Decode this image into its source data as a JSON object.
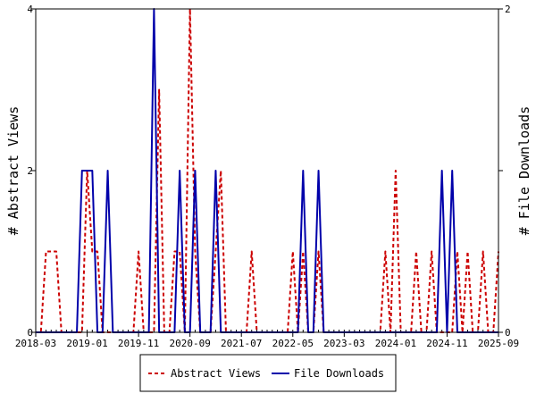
{
  "chart_data": {
    "type": "line",
    "x_ticks": [
      "2018-03",
      "2019-01",
      "2019-11",
      "2020-09",
      "2021-07",
      "2022-05",
      "2023-03",
      "2024-01",
      "2024-11",
      "2025-09"
    ],
    "x_start": "2018-03",
    "x_end": "2025-09",
    "left_axis": {
      "label": "# Abstract Views",
      "ylim": [
        0,
        4
      ],
      "ticks": [
        "0",
        "2",
        "4"
      ]
    },
    "right_axis": {
      "label": "# File Downloads",
      "ylim": [
        0,
        2
      ],
      "ticks": [
        "0",
        "1",
        "2"
      ]
    },
    "legend_position": "bottom",
    "series": [
      {
        "name": "Abstract Views",
        "axis": "left",
        "color": "#cc0000",
        "dash": "dashed",
        "points": [
          [
            "2018-03",
            0
          ],
          [
            "2018-04",
            0
          ],
          [
            "2018-05",
            1
          ],
          [
            "2018-06",
            1
          ],
          [
            "2018-07",
            1
          ],
          [
            "2018-08",
            0
          ],
          [
            "2018-09",
            0
          ],
          [
            "2018-10",
            0
          ],
          [
            "2018-11",
            0
          ],
          [
            "2018-12",
            0
          ],
          [
            "2019-01",
            2
          ],
          [
            "2019-02",
            1
          ],
          [
            "2019-03",
            1
          ],
          [
            "2019-04",
            0
          ],
          [
            "2019-05",
            0
          ],
          [
            "2019-06",
            0
          ],
          [
            "2019-07",
            0
          ],
          [
            "2019-08",
            0
          ],
          [
            "2019-09",
            0
          ],
          [
            "2019-10",
            0
          ],
          [
            "2019-11",
            1
          ],
          [
            "2019-12",
            0
          ],
          [
            "2020-01",
            0
          ],
          [
            "2020-02",
            0
          ],
          [
            "2020-03",
            3
          ],
          [
            "2020-04",
            0
          ],
          [
            "2020-05",
            0
          ],
          [
            "2020-06",
            1
          ],
          [
            "2020-07",
            1
          ],
          [
            "2020-08",
            0
          ],
          [
            "2020-09",
            4
          ],
          [
            "2020-10",
            1
          ],
          [
            "2020-11",
            0
          ],
          [
            "2020-12",
            0
          ],
          [
            "2021-01",
            0
          ],
          [
            "2021-02",
            1
          ],
          [
            "2021-03",
            2
          ],
          [
            "2021-04",
            0
          ],
          [
            "2021-05",
            0
          ],
          [
            "2021-06",
            0
          ],
          [
            "2021-07",
            0
          ],
          [
            "2021-08",
            0
          ],
          [
            "2021-09",
            1
          ],
          [
            "2021-10",
            0
          ],
          [
            "2021-11",
            0
          ],
          [
            "2021-12",
            0
          ],
          [
            "2022-01",
            0
          ],
          [
            "2022-02",
            0
          ],
          [
            "2022-03",
            0
          ],
          [
            "2022-04",
            0
          ],
          [
            "2022-05",
            1
          ],
          [
            "2022-06",
            0
          ],
          [
            "2022-07",
            1
          ],
          [
            "2022-08",
            0
          ],
          [
            "2022-09",
            0
          ],
          [
            "2022-10",
            1
          ],
          [
            "2022-11",
            0
          ],
          [
            "2022-12",
            0
          ],
          [
            "2023-01",
            0
          ],
          [
            "2023-02",
            0
          ],
          [
            "2023-03",
            0
          ],
          [
            "2023-04",
            0
          ],
          [
            "2023-05",
            0
          ],
          [
            "2023-06",
            0
          ],
          [
            "2023-07",
            0
          ],
          [
            "2023-08",
            0
          ],
          [
            "2023-09",
            0
          ],
          [
            "2023-10",
            0
          ],
          [
            "2023-11",
            1
          ],
          [
            "2023-12",
            0
          ],
          [
            "2024-01",
            2
          ],
          [
            "2024-02",
            0
          ],
          [
            "2024-03",
            0
          ],
          [
            "2024-04",
            0
          ],
          [
            "2024-05",
            1
          ],
          [
            "2024-06",
            0
          ],
          [
            "2024-07",
            0
          ],
          [
            "2024-08",
            1
          ],
          [
            "2024-09",
            0
          ],
          [
            "2024-10",
            0
          ],
          [
            "2024-11",
            0
          ],
          [
            "2024-12",
            0
          ],
          [
            "2025-01",
            1
          ],
          [
            "2025-02",
            0
          ],
          [
            "2025-03",
            1
          ],
          [
            "2025-04",
            0
          ],
          [
            "2025-05",
            0
          ],
          [
            "2025-06",
            1
          ],
          [
            "2025-07",
            0
          ],
          [
            "2025-08",
            0
          ],
          [
            "2025-09",
            1
          ]
        ]
      },
      {
        "name": "File Downloads",
        "axis": "right",
        "color": "#0000aa",
        "dash": "solid",
        "points": [
          [
            "2018-03",
            0
          ],
          [
            "2018-04",
            0
          ],
          [
            "2018-05",
            0
          ],
          [
            "2018-06",
            0
          ],
          [
            "2018-07",
            0
          ],
          [
            "2018-08",
            0
          ],
          [
            "2018-09",
            0
          ],
          [
            "2018-10",
            0
          ],
          [
            "2018-11",
            0
          ],
          [
            "2018-12",
            1
          ],
          [
            "2019-01",
            1
          ],
          [
            "2019-02",
            1
          ],
          [
            "2019-03",
            0
          ],
          [
            "2019-04",
            0
          ],
          [
            "2019-05",
            1
          ],
          [
            "2019-06",
            0
          ],
          [
            "2019-07",
            0
          ],
          [
            "2019-08",
            0
          ],
          [
            "2019-09",
            0
          ],
          [
            "2019-10",
            0
          ],
          [
            "2019-11",
            0
          ],
          [
            "2019-12",
            0
          ],
          [
            "2020-01",
            0
          ],
          [
            "2020-02",
            2
          ],
          [
            "2020-03",
            0
          ],
          [
            "2020-04",
            0
          ],
          [
            "2020-05",
            0
          ],
          [
            "2020-06",
            0
          ],
          [
            "2020-07",
            1
          ],
          [
            "2020-08",
            0
          ],
          [
            "2020-09",
            0
          ],
          [
            "2020-10",
            1
          ],
          [
            "2020-11",
            0
          ],
          [
            "2020-12",
            0
          ],
          [
            "2021-01",
            0
          ],
          [
            "2021-02",
            1
          ],
          [
            "2021-03",
            0
          ],
          [
            "2021-04",
            0
          ],
          [
            "2021-05",
            0
          ],
          [
            "2021-06",
            0
          ],
          [
            "2021-07",
            0
          ],
          [
            "2021-08",
            0
          ],
          [
            "2021-09",
            0
          ],
          [
            "2021-10",
            0
          ],
          [
            "2021-11",
            0
          ],
          [
            "2021-12",
            0
          ],
          [
            "2022-01",
            0
          ],
          [
            "2022-02",
            0
          ],
          [
            "2022-03",
            0
          ],
          [
            "2022-04",
            0
          ],
          [
            "2022-05",
            0
          ],
          [
            "2022-06",
            0
          ],
          [
            "2022-07",
            1
          ],
          [
            "2022-08",
            0
          ],
          [
            "2022-09",
            0
          ],
          [
            "2022-10",
            1
          ],
          [
            "2022-11",
            0
          ],
          [
            "2022-12",
            0
          ],
          [
            "2023-01",
            0
          ],
          [
            "2023-02",
            0
          ],
          [
            "2023-03",
            0
          ],
          [
            "2023-04",
            0
          ],
          [
            "2023-05",
            0
          ],
          [
            "2023-06",
            0
          ],
          [
            "2023-07",
            0
          ],
          [
            "2023-08",
            0
          ],
          [
            "2023-09",
            0
          ],
          [
            "2023-10",
            0
          ],
          [
            "2023-11",
            0
          ],
          [
            "2023-12",
            0
          ],
          [
            "2024-01",
            0
          ],
          [
            "2024-02",
            0
          ],
          [
            "2024-03",
            0
          ],
          [
            "2024-04",
            0
          ],
          [
            "2024-05",
            0
          ],
          [
            "2024-06",
            0
          ],
          [
            "2024-07",
            0
          ],
          [
            "2024-08",
            0
          ],
          [
            "2024-09",
            0
          ],
          [
            "2024-10",
            1
          ],
          [
            "2024-11",
            0
          ],
          [
            "2024-12",
            1
          ],
          [
            "2025-01",
            0
          ],
          [
            "2025-02",
            0
          ],
          [
            "2025-03",
            0
          ],
          [
            "2025-04",
            0
          ],
          [
            "2025-05",
            0
          ],
          [
            "2025-06",
            0
          ],
          [
            "2025-07",
            0
          ],
          [
            "2025-08",
            0
          ],
          [
            "2025-09",
            0
          ]
        ]
      }
    ]
  }
}
